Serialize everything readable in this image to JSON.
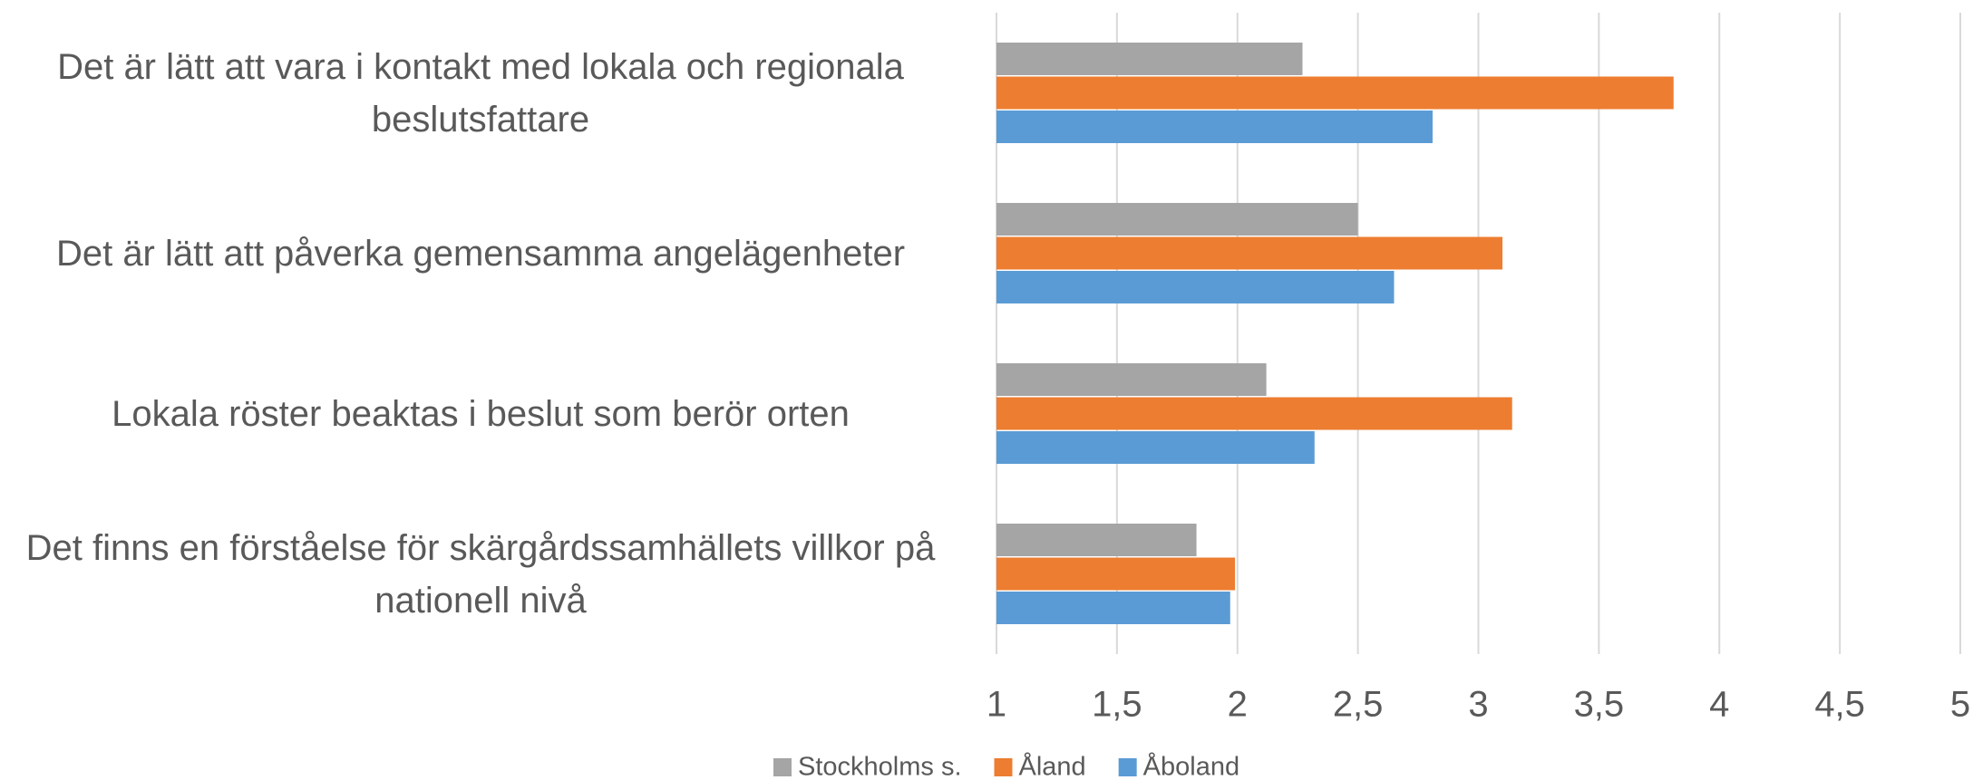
{
  "chart_data": {
    "type": "barh",
    "categories": [
      "Det är lätt att vara i kontakt med lokala och regionala beslutsfattare",
      "Det är lätt att påverka gemensamma angelägenheter",
      "Lokala röster beaktas i beslut som berör orten",
      "Det finns en förståelse för skärgårdssamhällets villkor på nationell nivå"
    ],
    "series": [
      {
        "name": "Stockholms s.",
        "color": "#a5a5a5",
        "values": [
          2.27,
          2.5,
          2.12,
          1.83
        ]
      },
      {
        "name": "Åland",
        "color": "#ed7d31",
        "values": [
          3.81,
          3.1,
          3.14,
          1.99
        ]
      },
      {
        "name": "Åboland",
        "color": "#5b9bd5",
        "values": [
          2.81,
          2.65,
          2.32,
          1.97
        ]
      }
    ],
    "xlim": [
      1,
      5
    ],
    "xticks": [
      1,
      {
        "value": 1.5,
        "label": "1,5"
      },
      2,
      {
        "value": 2.5,
        "label": "2,5"
      },
      3,
      {
        "value": 3.5,
        "label": "3,5"
      },
      4,
      {
        "value": 4.5,
        "label": "4,5"
      },
      5
    ],
    "grid": true,
    "legend": "bottom"
  }
}
